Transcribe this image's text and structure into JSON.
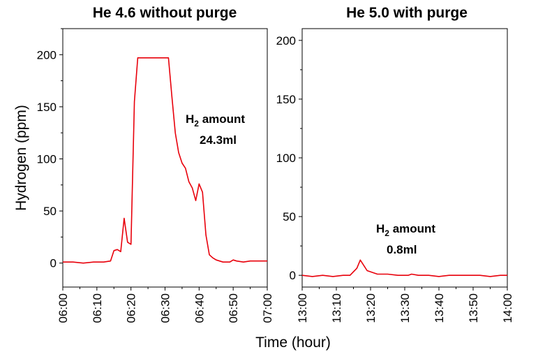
{
  "chart_data": [
    {
      "type": "line",
      "title": "He 4.6 without purge",
      "ylabel": "Hydrogen (ppm)",
      "xlabel": "",
      "ylim": [
        -23,
        225
      ],
      "yticks": [
        0,
        50,
        100,
        150,
        200
      ],
      "xlim_minutes": [
        0,
        60
      ],
      "xtick_labels": [
        "06:00",
        "06:10",
        "06:20",
        "06:30",
        "06:40",
        "06:50",
        "07:00"
      ],
      "annotation": {
        "line1_main": "H",
        "line1_sub": "2",
        "line1_rest": " amount",
        "line2": "24.3ml"
      },
      "series": [
        {
          "color": "#e8000b",
          "x_minutes": [
            0,
            3,
            6,
            9,
            12,
            14,
            15,
            16,
            17,
            18,
            19,
            20,
            21,
            22,
            25,
            28,
            31,
            32,
            33,
            34,
            35,
            36,
            37,
            38,
            39,
            40,
            41,
            42,
            43,
            44,
            45,
            47,
            49,
            50,
            51,
            53,
            55,
            58,
            60
          ],
          "values": [
            1,
            1,
            0,
            1,
            1,
            2,
            12,
            13,
            11,
            43,
            20,
            18,
            155,
            197,
            197,
            197,
            197,
            160,
            125,
            106,
            96,
            91,
            78,
            72,
            60,
            76,
            68,
            27,
            8,
            5,
            3,
            1,
            1,
            3,
            2,
            1,
            2,
            2,
            2
          ]
        }
      ]
    },
    {
      "type": "line",
      "title": "He 5.0 with purge",
      "ylabel": "",
      "xlabel": "Time (hour)",
      "ylim": [
        -10,
        210
      ],
      "yticks": [
        0,
        50,
        100,
        150,
        200
      ],
      "xlim_minutes": [
        0,
        60
      ],
      "xtick_labels": [
        "13:00",
        "13:10",
        "13:20",
        "13:30",
        "13:40",
        "13:50",
        "14:00"
      ],
      "annotation": {
        "line1_main": "H",
        "line1_sub": "2",
        "line1_rest": " amount",
        "line2": "0.8ml"
      },
      "series": [
        {
          "color": "#e8000b",
          "x_minutes": [
            0,
            3,
            6,
            9,
            12,
            14,
            16,
            17,
            19,
            22,
            25,
            28,
            31,
            32,
            34,
            37,
            40,
            43,
            46,
            49,
            52,
            55,
            58,
            60
          ],
          "values": [
            0,
            -1,
            0,
            -1,
            0,
            0,
            6,
            13,
            4,
            1,
            1,
            0,
            0,
            1,
            0,
            0,
            -1,
            0,
            0,
            0,
            0,
            -1,
            0,
            0
          ]
        }
      ]
    }
  ]
}
